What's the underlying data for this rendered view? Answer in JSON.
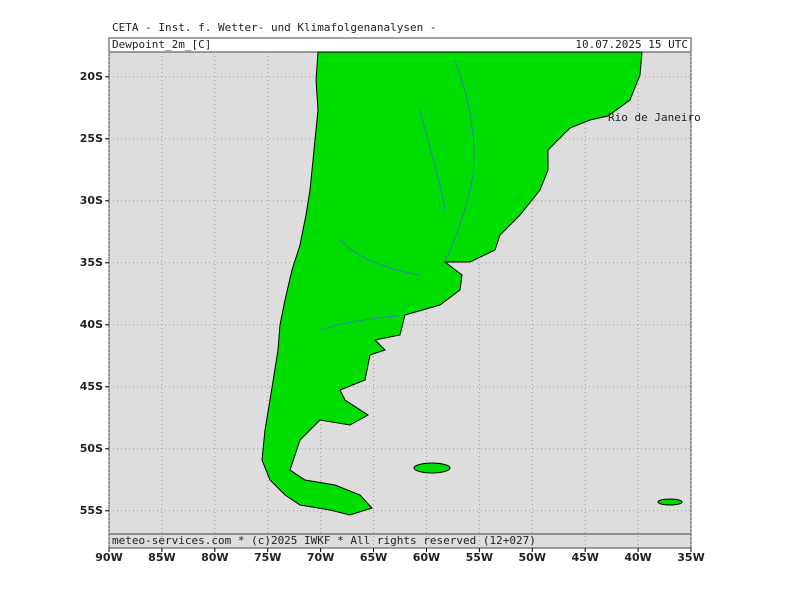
{
  "header": {
    "title": "CETA - Inst. f. Wetter- und Klimafolgenanalysen -",
    "variable": "Dewpoint_2m_[C]",
    "valid": "10.07.2025 15 UTC"
  },
  "map": {
    "xlim": [
      -90,
      -35
    ],
    "ylim": [
      -58,
      -18
    ],
    "xticks": [
      {
        "value": -90,
        "label": "90W"
      },
      {
        "value": -85,
        "label": "85W"
      },
      {
        "value": -80,
        "label": "80W"
      },
      {
        "value": -75,
        "label": "75W"
      },
      {
        "value": -70,
        "label": "70W"
      },
      {
        "value": -65,
        "label": "65W"
      },
      {
        "value": -60,
        "label": "60W"
      },
      {
        "value": -55,
        "label": "55W"
      },
      {
        "value": -50,
        "label": "50W"
      },
      {
        "value": -45,
        "label": "45W"
      },
      {
        "value": -40,
        "label": "40W"
      },
      {
        "value": -35,
        "label": "35W"
      }
    ],
    "yticks": [
      {
        "value": -20,
        "label": "20S"
      },
      {
        "value": -25,
        "label": "25S"
      },
      {
        "value": -30,
        "label": "30S"
      },
      {
        "value": -35,
        "label": "35S"
      },
      {
        "value": -40,
        "label": "40S"
      },
      {
        "value": -45,
        "label": "45S"
      },
      {
        "value": -50,
        "label": "50S"
      },
      {
        "value": -55,
        "label": "55S"
      }
    ],
    "grid": true,
    "land_color": "#00dd00",
    "place": "Rio de Janeiro"
  },
  "footer": "meteo-services.com * (c)2025 IWKF * All rights reserved (12+027)"
}
